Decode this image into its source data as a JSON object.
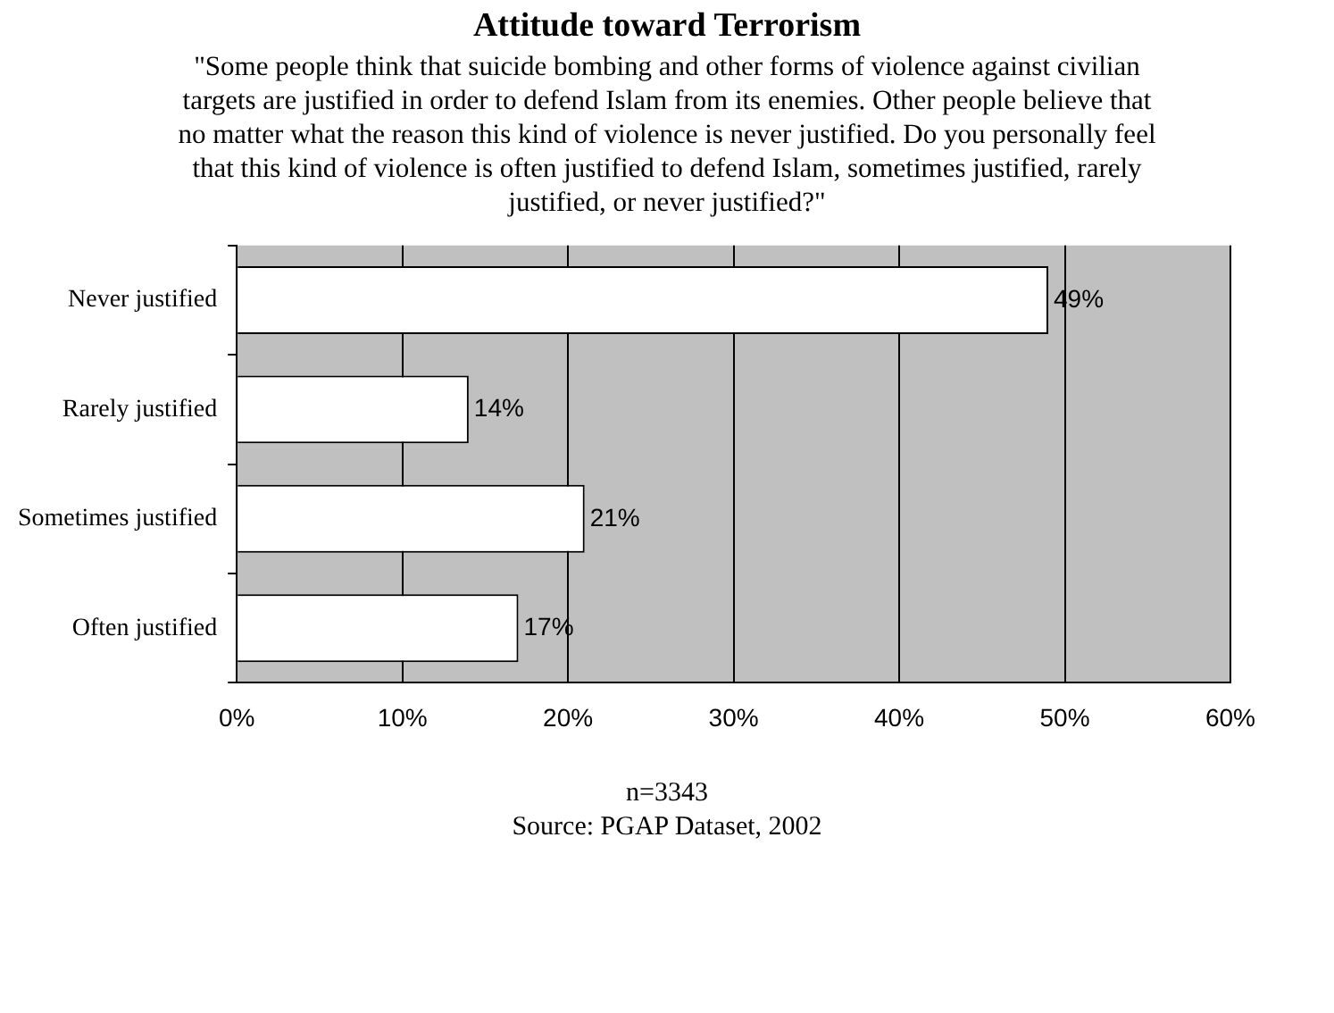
{
  "chart_data": {
    "type": "bar",
    "orientation": "horizontal",
    "title": "Attitude toward Terrorism",
    "subtitle": "\"Some people think that suicide bombing and other forms of violence against civilian targets are justified in order to defend Islam from its enemies.  Other people believe that no matter what the reason this kind of violence is never justified.  Do you personally feel that this kind of violence is often justified to defend Islam, sometimes justified, rarely justified, or never justified?\"",
    "categories": [
      "Never justified",
      "Rarely justified",
      "Sometimes justified",
      "Often justified"
    ],
    "values": [
      49,
      14,
      21,
      17
    ],
    "value_labels": [
      "49%",
      "14%",
      "21%",
      "17%"
    ],
    "color": "#ffffff",
    "xlim": [
      0,
      60
    ],
    "xticks": [
      {
        "value": 0,
        "label": "0%"
      },
      {
        "value": 10,
        "label": "10%"
      },
      {
        "value": 20,
        "label": "20%"
      },
      {
        "value": 30,
        "label": "30%"
      },
      {
        "value": 40,
        "label": "40%"
      },
      {
        "value": 50,
        "label": "50%"
      },
      {
        "value": 60,
        "label": "60%"
      }
    ],
    "grid": "x",
    "legend": false,
    "annotations": [
      "n=3343",
      "Source: PGAP Dataset, 2002"
    ]
  }
}
